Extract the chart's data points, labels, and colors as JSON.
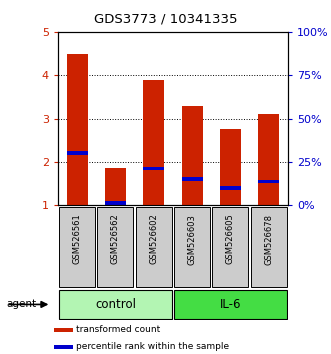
{
  "title": "GDS3773 / 10341335",
  "samples": [
    "GSM526561",
    "GSM526562",
    "GSM526602",
    "GSM526603",
    "GSM526605",
    "GSM526678"
  ],
  "red_bar_top": [
    4.5,
    1.85,
    3.9,
    3.3,
    2.75,
    3.1
  ],
  "red_bar_bottom": [
    1.0,
    1.0,
    1.0,
    1.0,
    1.0,
    1.0
  ],
  "blue_marker": [
    2.2,
    1.05,
    1.85,
    1.6,
    1.4,
    1.55
  ],
  "blue_marker_height": [
    0.09,
    0.09,
    0.09,
    0.09,
    0.09,
    0.09
  ],
  "ylim": [
    1,
    5
  ],
  "y_ticks_left": [
    1,
    2,
    3,
    4,
    5
  ],
  "y_ticks_right_vals": [
    0,
    25,
    50,
    75,
    100
  ],
  "y_ticks_right_positions": [
    1.0,
    2.0,
    3.0,
    4.0,
    5.0
  ],
  "groups": [
    {
      "label": "control",
      "indices": [
        0,
        1,
        2
      ],
      "color": "#b3f5b3"
    },
    {
      "label": "IL-6",
      "indices": [
        3,
        4,
        5
      ],
      "color": "#44dd44"
    }
  ],
  "agent_label": "agent",
  "bar_color": "#cc2200",
  "blue_color": "#0000cc",
  "title_color": "#000000",
  "left_axis_color": "#cc2200",
  "right_axis_color": "#0000cc",
  "legend_items": [
    {
      "color": "#cc2200",
      "label": "transformed count"
    },
    {
      "color": "#0000cc",
      "label": "percentile rank within the sample"
    }
  ],
  "bar_width": 0.55,
  "plot_bg": "#ffffff",
  "tick_label_bg": "#cccccc",
  "grid_vals": [
    2,
    3,
    4
  ]
}
